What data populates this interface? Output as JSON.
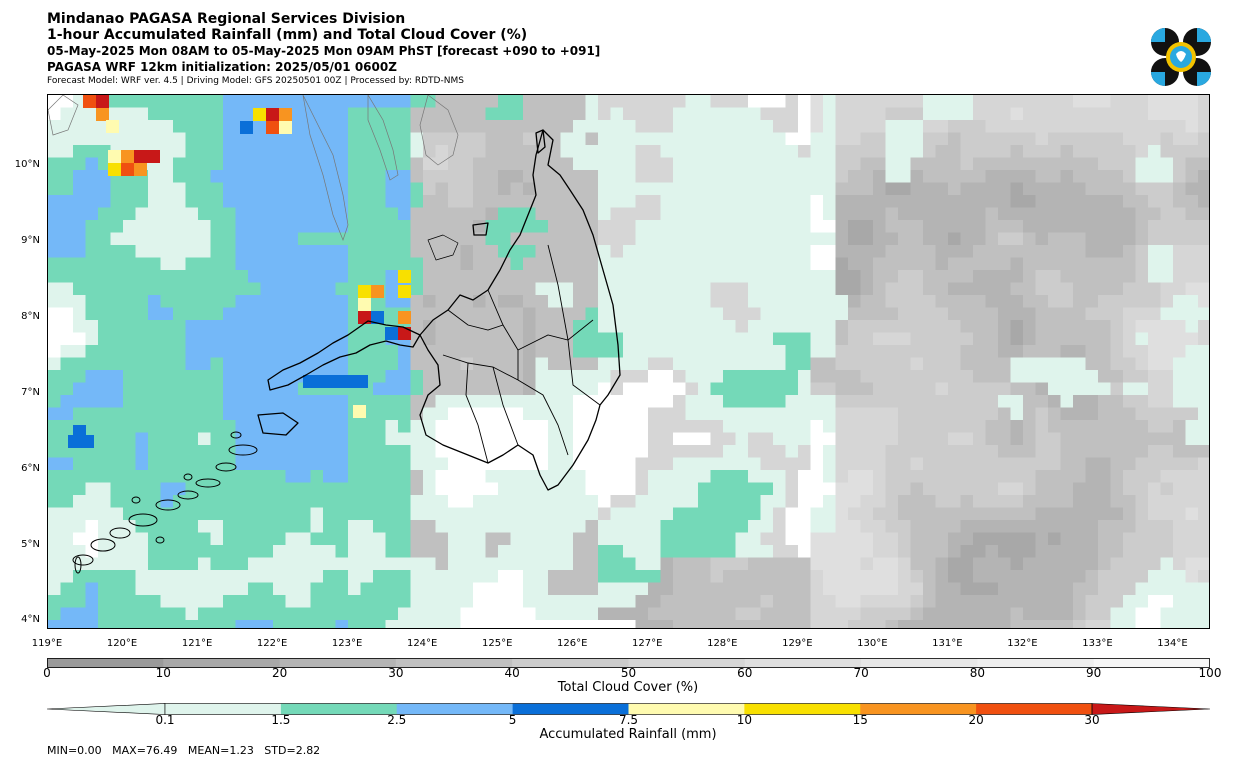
{
  "header": {
    "line1": "Mindanao PAGASA Regional Services Division",
    "line2": "1-hour Accumulated Rainfall (mm) and Total Cloud Cover (%)",
    "line3": "05-May-2025 Mon 08AM to 05-May-2025 Mon 09AM PhST [forecast +090 to +091]",
    "line4": "PAGASA WRF 12km initialization: 2025/05/01 0600Z",
    "line5": "Forecast Model: WRF ver. 4.5 | Driving Model: GFS 20250501 00Z | Processed by: RDTD-NMS"
  },
  "map": {
    "lon_range": [
      119,
      134.5
    ],
    "lat_range": [
      3.9,
      10.95
    ],
    "lat_labels": [
      "10°N",
      "9°N",
      "8°N",
      "7°N",
      "6°N",
      "5°N",
      "4°N"
    ],
    "lon_labels": [
      "119°E",
      "120°E",
      "121°E",
      "122°E",
      "123°E",
      "124°E",
      "125°E",
      "126°E",
      "127°E",
      "128°E",
      "129°E",
      "130°E",
      "131°E",
      "132°E",
      "133°E",
      "134°E"
    ]
  },
  "cloud_colorbar": {
    "label": "Total Cloud Cover (%)",
    "ticks": [
      "0",
      "10",
      "20",
      "30",
      "40",
      "50",
      "60",
      "70",
      "80",
      "90",
      "100"
    ],
    "colors": [
      "#9a9a9a",
      "#a8a8a8",
      "#b4b4b4",
      "#c0c0c0",
      "#cccccc",
      "#d6d6d6",
      "#dfdfdf",
      "#e7e7e7",
      "#eeeeee",
      "#f6f6f6"
    ]
  },
  "rain_colorbar": {
    "label": "Accumulated Rainfall (mm)",
    "ticks": [
      "0.1",
      "1.5",
      "2.5",
      "5",
      "7.5",
      "10",
      "15",
      "20",
      "30"
    ],
    "colors": [
      "#dff4ec",
      "#74d9b8",
      "#74b8f8",
      "#0a6fd8",
      "#fffbb0",
      "#f8e000",
      "#f89420",
      "#f05010",
      "#c81818"
    ]
  },
  "stats": {
    "text": "MIN=0.00   MAX=76.49   MEAN=1.23   STD=2.82"
  }
}
